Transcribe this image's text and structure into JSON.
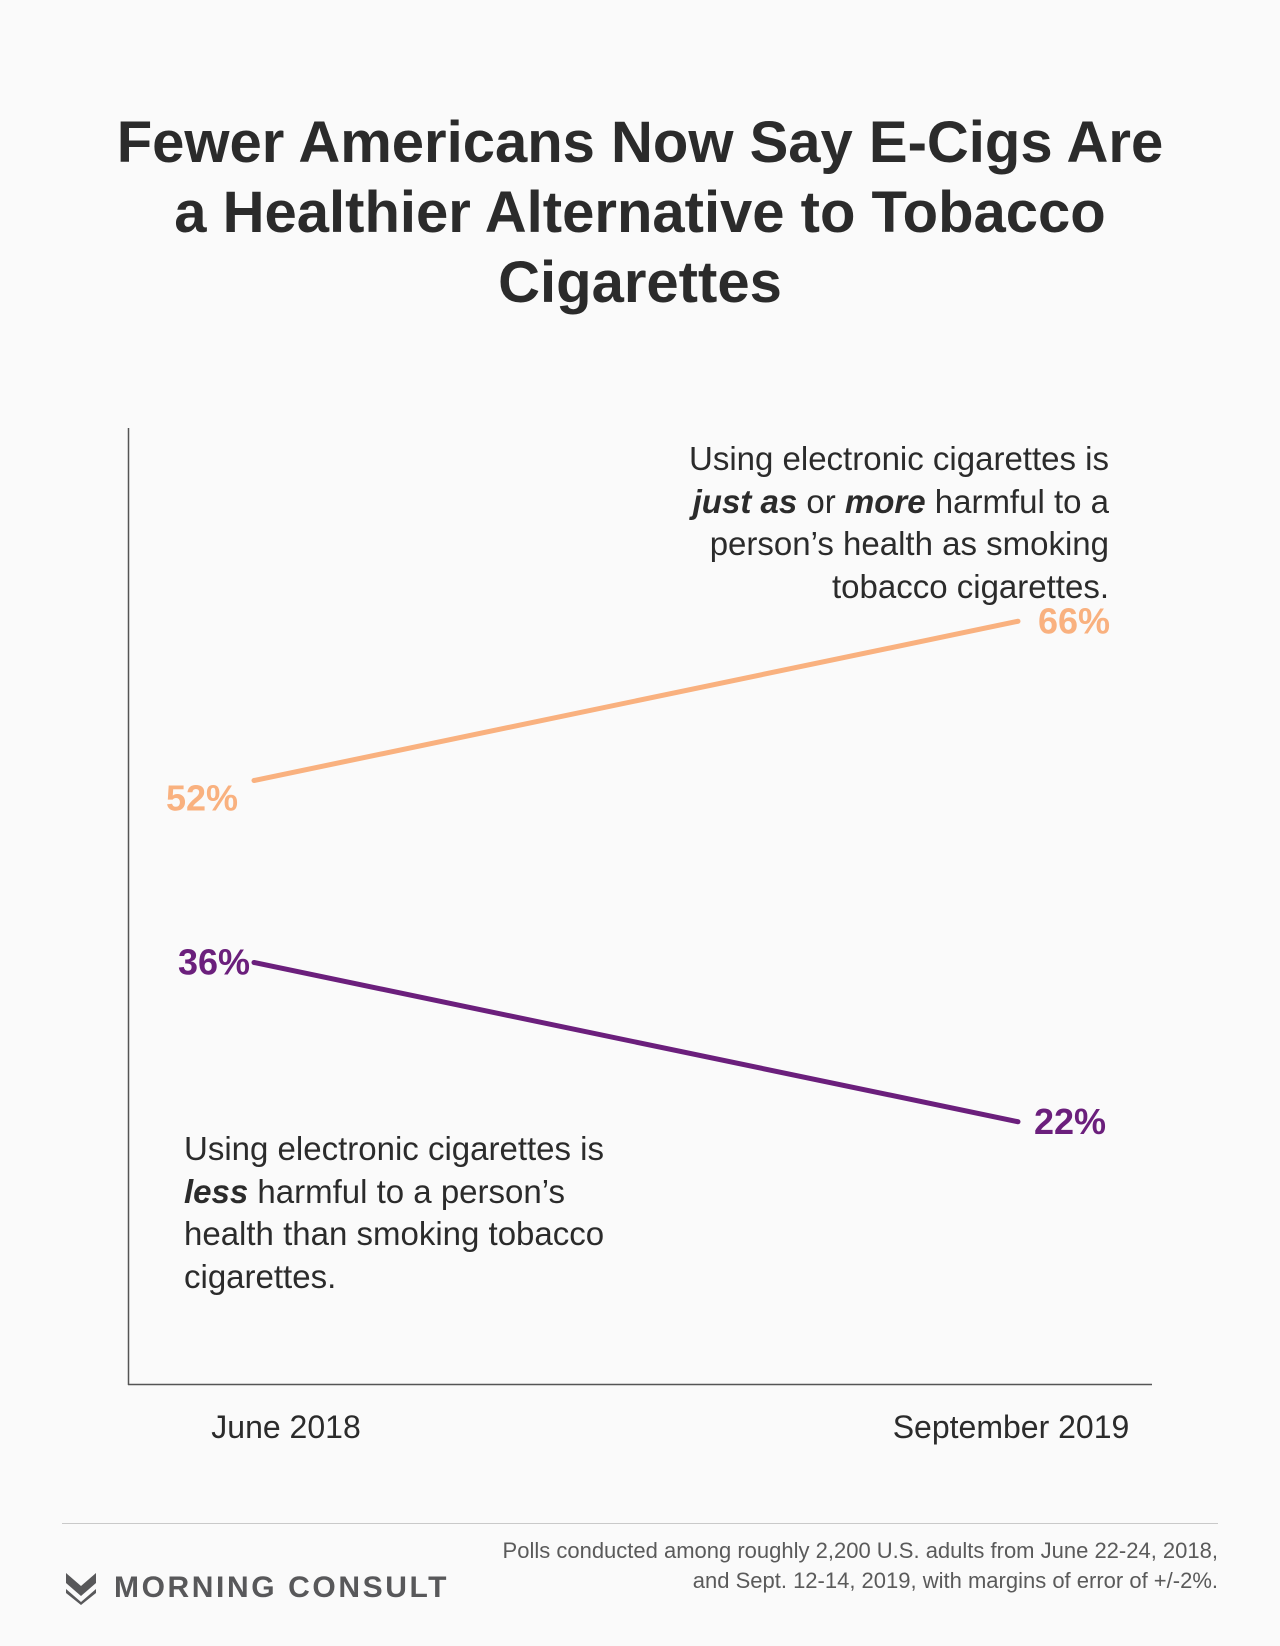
{
  "title": "Fewer Americans Now Say E-Cigs Are a Healthier Alternative to Tobacco Cigarettes",
  "annotations": {
    "harmful": {
      "p1": "Using electronic cigarettes is ",
      "em1": "just as",
      "p2": " or ",
      "em2": "more",
      "p3": " harmful to a person’s health as smoking tobacco cigarettes."
    },
    "less": {
      "p1": "Using electronic cigarettes is ",
      "em1": "less",
      "p2": " harmful to a person’s health than smoking tobacco cigarettes."
    }
  },
  "footer": {
    "brand": "MORNING CONSULT",
    "source": "Polls conducted among roughly 2,200 U.S. adults from June 22-24, 2018, and Sept. 12-14, 2019, with margins of error of +/-2%."
  },
  "colors": {
    "harmful_series": "#f9b17f",
    "less_series": "#6b1f7c",
    "axis": "#555555",
    "text": "#2b2b2b"
  },
  "chart_data": {
    "type": "line",
    "x": [
      "June 2018",
      "September 2019"
    ],
    "series": [
      {
        "key": "harmful",
        "values": [
          52,
          66
        ],
        "labels": [
          "52%",
          "66%"
        ],
        "color": "#f9b17f"
      },
      {
        "key": "less",
        "values": [
          36,
          22
        ],
        "labels": [
          "36%",
          "22%"
        ],
        "color": "#6b1f7c"
      }
    ],
    "unit": "%",
    "legend": "none",
    "grid": false
  }
}
